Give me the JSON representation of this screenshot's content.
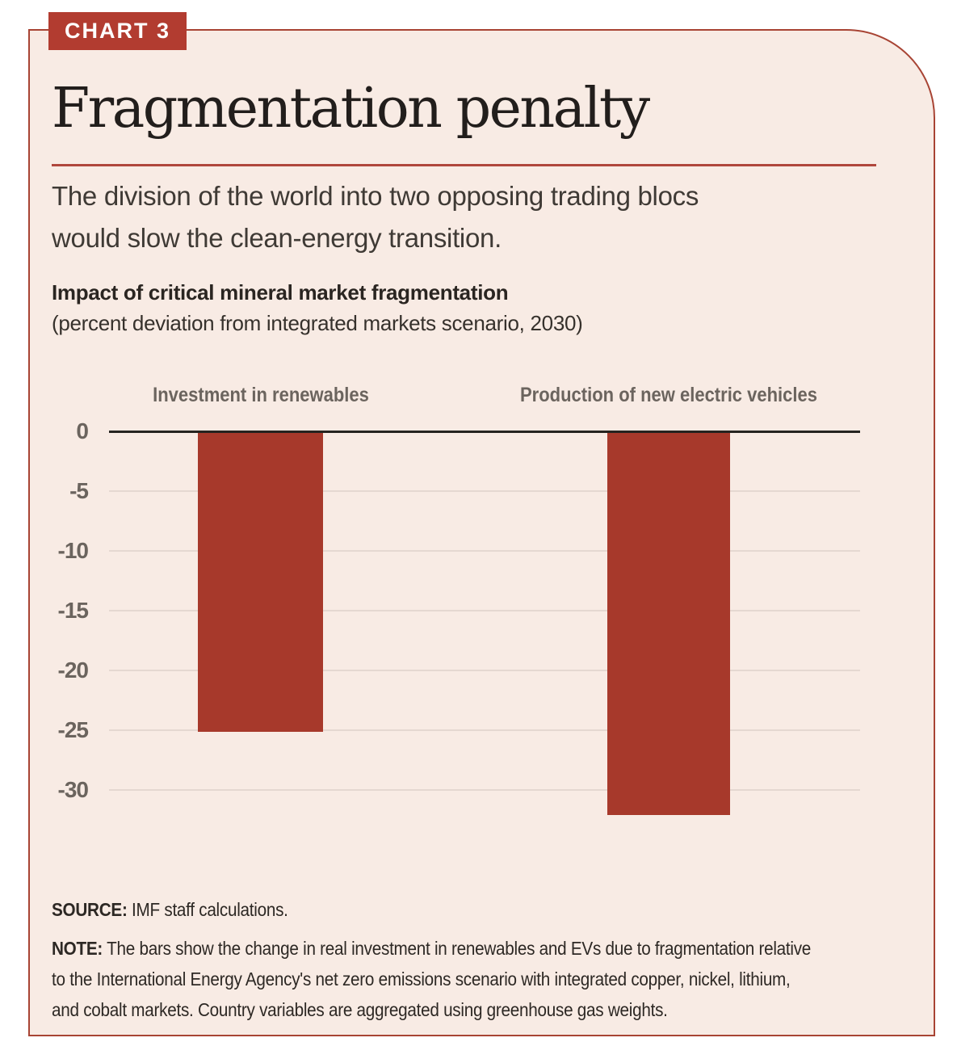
{
  "badge": {
    "label": "CHART 3"
  },
  "title": "Fragmentation penalty",
  "subtitle_lines": [
    "The division of the world into two opposing trading blocs",
    "would slow the clean-energy transition."
  ],
  "chart_heading": {
    "bold": "Impact of critical mineral market fragmentation",
    "unit": "(percent deviation from integrated markets scenario, 2030)"
  },
  "chart_data": {
    "type": "bar",
    "categories": [
      "Investment in renewables",
      "Production of new electric vehicles"
    ],
    "values": [
      -25,
      -32
    ],
    "title": "Impact of critical mineral market fragmentation",
    "ylabel": "percent deviation from integrated markets scenario, 2030",
    "ylim": [
      -33,
      0
    ],
    "yticks": [
      0,
      -5,
      -10,
      -15,
      -20,
      -25,
      -30
    ],
    "grid": true,
    "legend": "none",
    "bar_color": "#a7392b"
  },
  "footer": {
    "source_label": "SOURCE:",
    "source_text": "IMF staff calculations.",
    "note_label": "NOTE:",
    "note_lines": [
      "The bars show the change in real investment in renewables and EVs due to fragmentation relative",
      "to the International Energy Agency's net zero emissions scenario with integrated copper, nickel, lithium,",
      "and cobalt markets. Country variables are aggregated using greenhouse gas weights."
    ]
  },
  "colors": {
    "accent_red": "#b23c30",
    "bar_red": "#a7392b",
    "card_bg": "#f8ebe4",
    "border_red": "#a84434",
    "rule_red": "#b0473c",
    "gridline": "#e5d8d1",
    "axis_black": "#262420",
    "muted_text": "#6b645e"
  }
}
